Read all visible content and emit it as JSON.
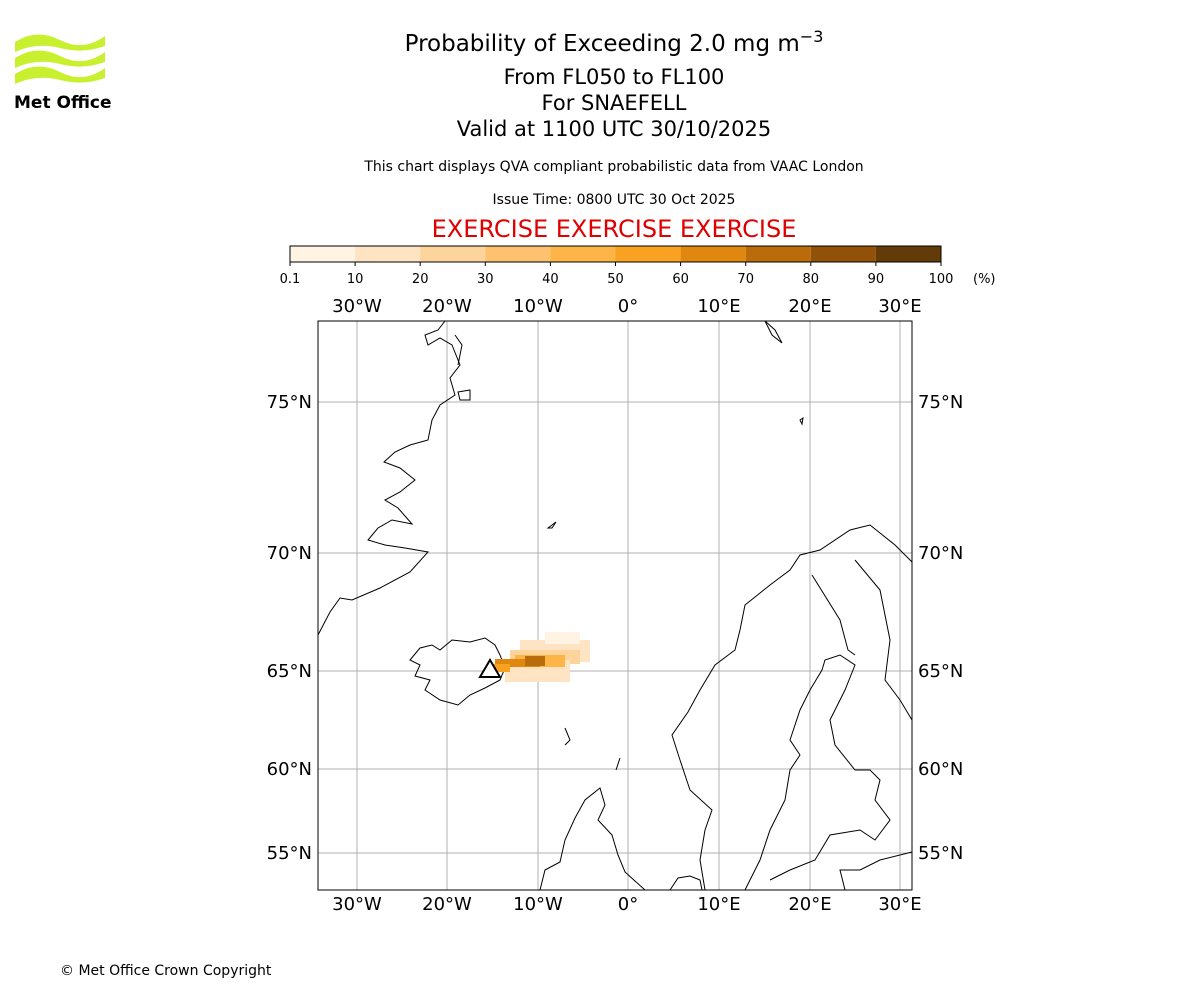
{
  "logo": {
    "text": "Met Office"
  },
  "title": {
    "main": "Probability of Exceeding 2.0 mg m",
    "superscript": "−3",
    "lines": [
      "From FL050 to FL100",
      "For SNAEFELL",
      "Valid at 1100 UTC 30/10/2025"
    ]
  },
  "description": "This chart displays QVA compliant probabilistic data from VAAC London",
  "issue_time": "Issue Time: 0800 UTC 30 Oct 2025",
  "exercise": "EXERCISE EXERCISE EXERCISE",
  "colorbar": {
    "ticks": [
      "0.1",
      "10",
      "20",
      "30",
      "40",
      "50",
      "60",
      "70",
      "80",
      "90",
      "100"
    ],
    "unit": "(%)",
    "colors": [
      "#fff4e4",
      "#fee4c3",
      "#fdd49c",
      "#fdc170",
      "#fdb547",
      "#f9a120",
      "#df870f",
      "#bb6c0a",
      "#915108",
      "#633b08"
    ]
  },
  "map": {
    "lon_labels": [
      "30°W",
      "20°W",
      "10°W",
      "0°",
      "10°E",
      "20°E",
      "30°E"
    ],
    "lat_labels": [
      "75°N",
      "70°N",
      "65°N",
      "60°N",
      "55°N"
    ]
  },
  "copyright": "© Met Office Crown Copyright"
}
